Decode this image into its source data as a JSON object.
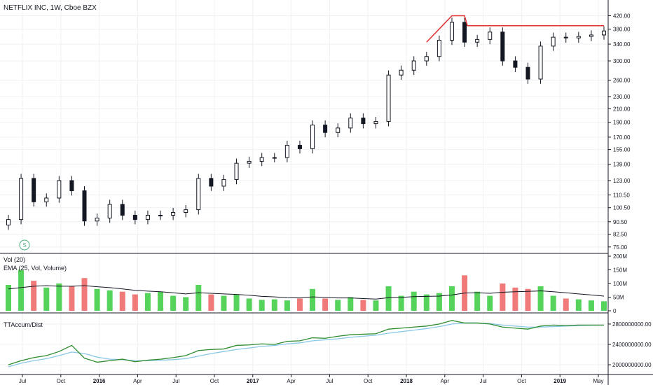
{
  "chart_data": [
    {
      "type": "candlestick",
      "title": "NETFLIX INC, 1W, Cboe BZX",
      "marker_label": "S",
      "y_scale": "log",
      "y_ticks": [
        "420.00",
        "380.00",
        "340.00",
        "300.00",
        "260.00",
        "230.00",
        "210.00",
        "190.00",
        "170.00",
        "155.00",
        "139.00",
        "123.00",
        "110.50",
        "100.50",
        "90.50",
        "82.50",
        "75.00"
      ],
      "ylim": [
        73,
        430
      ],
      "x_ticks": [
        "Jul",
        "Oct",
        "2016",
        "Apr",
        "Jul",
        "Oct",
        "2017",
        "Apr",
        "Jul",
        "Oct",
        "2018",
        "Apr",
        "Jul",
        "Oct",
        "2019",
        "May"
      ],
      "x": [
        "2015-07",
        "2015-08",
        "2015-09",
        "2015-10",
        "2015-11",
        "2015-12",
        "2016-01",
        "2016-02",
        "2016-03",
        "2016-04",
        "2016-05",
        "2016-06",
        "2016-07",
        "2016-08",
        "2016-09",
        "2016-10",
        "2016-11",
        "2016-12",
        "2017-01",
        "2017-02",
        "2017-03",
        "2017-04",
        "2017-05",
        "2017-06",
        "2017-07",
        "2017-08",
        "2017-09",
        "2017-10",
        "2017-11",
        "2017-12",
        "2018-01",
        "2018-02",
        "2018-03",
        "2018-04",
        "2018-05",
        "2018-06",
        "2018-07",
        "2018-08",
        "2018-09",
        "2018-10",
        "2018-11",
        "2018-12",
        "2019-01",
        "2019-02",
        "2019-03",
        "2019-04",
        "2019-05",
        "2019-06"
      ],
      "close": [
        92,
        125,
        105,
        108,
        123,
        114,
        91,
        93,
        103,
        95,
        92,
        95,
        95,
        97,
        99,
        125,
        118,
        124,
        140,
        142,
        146,
        146,
        160,
        156,
        186,
        176,
        182,
        196,
        188,
        191,
        270,
        280,
        300,
        310,
        350,
        400,
        345,
        352,
        372,
        300,
        286,
        262,
        335,
        358,
        356,
        360,
        364,
        375
      ],
      "trend_lines": [
        {
          "name": "resistance-top",
          "points": [
            [
              "2018-04",
              345
            ],
            [
              "2018-06",
              420
            ],
            [
              "2018-07",
              420
            ],
            [
              "2018-07",
              390
            ],
            [
              "2019-06",
              390
            ]
          ]
        }
      ]
    },
    {
      "type": "bar",
      "title": "Vol (20)",
      "subtitle": "EMA (25, Vol, Volume)",
      "y_ticks": [
        "200M",
        "150M",
        "100M",
        "50M",
        "0"
      ],
      "ylim": [
        0,
        200
      ],
      "unit": "M",
      "x": [
        "2015-07",
        "2015-08",
        "2015-09",
        "2015-10",
        "2015-11",
        "2015-12",
        "2016-01",
        "2016-02",
        "2016-03",
        "2016-04",
        "2016-05",
        "2016-06",
        "2016-07",
        "2016-08",
        "2016-09",
        "2016-10",
        "2016-11",
        "2016-12",
        "2017-01",
        "2017-02",
        "2017-03",
        "2017-04",
        "2017-05",
        "2017-06",
        "2017-07",
        "2017-08",
        "2017-09",
        "2017-10",
        "2017-11",
        "2017-12",
        "2018-01",
        "2018-02",
        "2018-03",
        "2018-04",
        "2018-05",
        "2018-06",
        "2018-07",
        "2018-08",
        "2018-09",
        "2018-10",
        "2018-11",
        "2018-12",
        "2019-01",
        "2019-02",
        "2019-03",
        "2019-04",
        "2019-05",
        "2019-06"
      ],
      "values": [
        95,
        150,
        110,
        85,
        100,
        90,
        120,
        80,
        75,
        70,
        60,
        65,
        70,
        55,
        50,
        95,
        60,
        55,
        60,
        45,
        40,
        42,
        38,
        45,
        80,
        45,
        40,
        50,
        40,
        38,
        90,
        55,
        70,
        60,
        65,
        90,
        130,
        70,
        55,
        100,
        85,
        80,
        90,
        55,
        45,
        42,
        38,
        35
      ],
      "ema": [
        80,
        85,
        90,
        92,
        90,
        90,
        92,
        88,
        85,
        80,
        75,
        72,
        70,
        66,
        62,
        66,
        64,
        62,
        60,
        57,
        53,
        51,
        48,
        47,
        51,
        49,
        47,
        47,
        45,
        43,
        48,
        49,
        52,
        53,
        54,
        58,
        65,
        66,
        64,
        68,
        70,
        71,
        73,
        70,
        66,
        62,
        58,
        54
      ],
      "colors": {
        "up": "#55d35b",
        "down": "#f07a7a",
        "ema": "#131722"
      }
    },
    {
      "type": "line",
      "title": "TTAccum/Dist",
      "y_ticks": [
        "2800000000.00",
        "2400000000.00",
        "2000000000.00"
      ],
      "ylim": [
        1850000000,
        2950000000
      ],
      "x": [
        "2015-07",
        "2015-08",
        "2015-09",
        "2015-10",
        "2015-11",
        "2015-12",
        "2016-01",
        "2016-02",
        "2016-03",
        "2016-04",
        "2016-05",
        "2016-06",
        "2016-07",
        "2016-08",
        "2016-09",
        "2016-10",
        "2016-11",
        "2016-12",
        "2017-01",
        "2017-02",
        "2017-03",
        "2017-04",
        "2017-05",
        "2017-06",
        "2017-07",
        "2017-08",
        "2017-09",
        "2017-10",
        "2017-11",
        "2017-12",
        "2018-01",
        "2018-02",
        "2018-03",
        "2018-04",
        "2018-05",
        "2018-06",
        "2018-07",
        "2018-08",
        "2018-09",
        "2018-10",
        "2018-11",
        "2018-12",
        "2019-01",
        "2019-02",
        "2019-03",
        "2019-04",
        "2019-05",
        "2019-06"
      ],
      "series": [
        {
          "values": [
            2000000000,
            2080000000,
            2140000000,
            2180000000,
            2260000000,
            2380000000,
            2130000000,
            2050000000,
            2080000000,
            2110000000,
            2060000000,
            2090000000,
            2110000000,
            2140000000,
            2180000000,
            2280000000,
            2300000000,
            2310000000,
            2380000000,
            2390000000,
            2410000000,
            2400000000,
            2460000000,
            2470000000,
            2530000000,
            2520000000,
            2560000000,
            2590000000,
            2600000000,
            2610000000,
            2700000000,
            2720000000,
            2740000000,
            2760000000,
            2800000000,
            2870000000,
            2820000000,
            2820000000,
            2800000000,
            2740000000,
            2720000000,
            2700000000,
            2760000000,
            2780000000,
            2770000000,
            2780000000,
            2780000000,
            2780000000
          ],
          "color": "#2e8b2e"
        },
        {
          "values": [
            1960000000,
            2030000000,
            2080000000,
            2120000000,
            2180000000,
            2250000000,
            2220000000,
            2150000000,
            2110000000,
            2100000000,
            2080000000,
            2080000000,
            2090000000,
            2100000000,
            2120000000,
            2170000000,
            2220000000,
            2260000000,
            2300000000,
            2330000000,
            2360000000,
            2380000000,
            2410000000,
            2430000000,
            2470000000,
            2490000000,
            2510000000,
            2540000000,
            2560000000,
            2580000000,
            2620000000,
            2650000000,
            2680000000,
            2710000000,
            2750000000,
            2800000000,
            2820000000,
            2820000000,
            2810000000,
            2780000000,
            2760000000,
            2740000000,
            2740000000,
            2750000000,
            2760000000,
            2770000000,
            2775000000,
            2778000000
          ],
          "color": "#8ac8e6"
        }
      ]
    }
  ],
  "colors": {
    "up": "#ffffff",
    "down": "#131722",
    "trend": "#e03030",
    "grid": "#eef0f3",
    "axis": "#131722",
    "marker": "#4caf7d"
  }
}
